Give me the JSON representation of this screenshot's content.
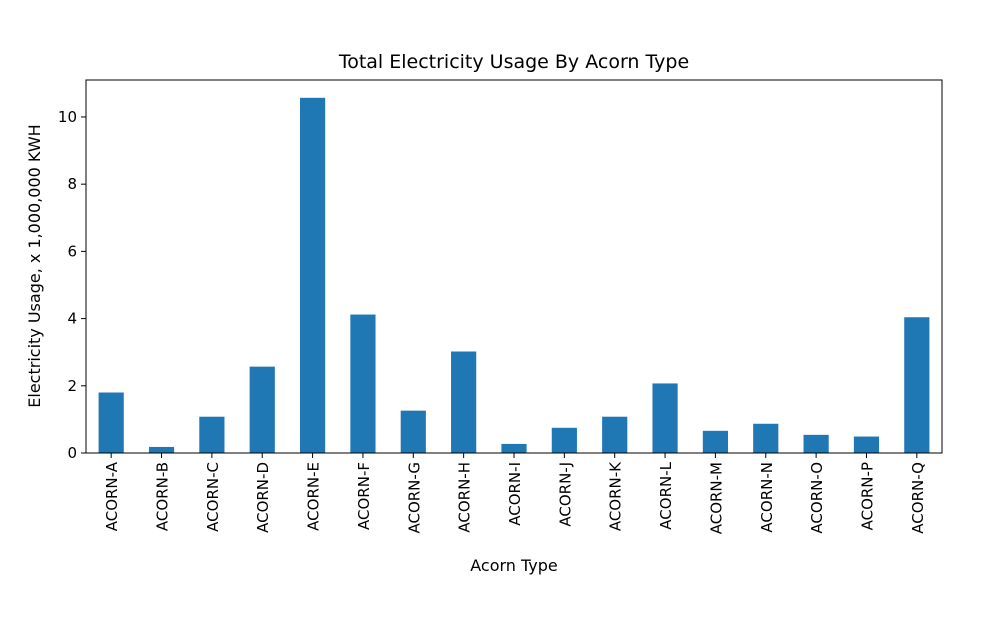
{
  "chart_data": {
    "type": "bar",
    "title": "Total Electricity Usage By Acorn Type",
    "xlabel": "Acorn Type",
    "ylabel": "Electricity Usage, x 1,000,000 KWH",
    "categories": [
      "ACORN-A",
      "ACORN-B",
      "ACORN-C",
      "ACORN-D",
      "ACORN-E",
      "ACORN-F",
      "ACORN-G",
      "ACORN-H",
      "ACORN-I",
      "ACORN-J",
      "ACORN-K",
      "ACORN-L",
      "ACORN-M",
      "ACORN-N",
      "ACORN-O",
      "ACORN-P",
      "ACORN-Q"
    ],
    "values": [
      1.8,
      0.18,
      1.08,
      2.57,
      10.57,
      4.12,
      1.26,
      3.02,
      0.27,
      0.75,
      1.08,
      2.07,
      0.66,
      0.87,
      0.54,
      0.49,
      4.04
    ],
    "yticks": [
      0,
      2,
      4,
      6,
      8,
      10
    ],
    "ylim": [
      0,
      11.1
    ],
    "bar_color": "#1f77b4",
    "grid": false,
    "legend": "none"
  }
}
